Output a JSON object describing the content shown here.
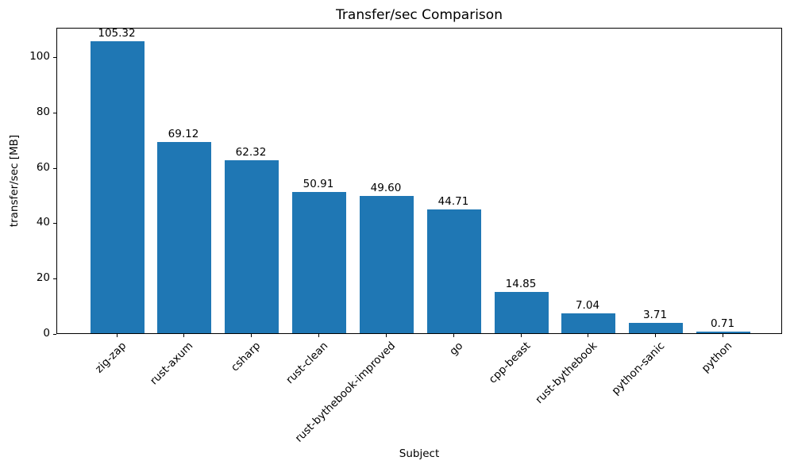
{
  "chart_data": {
    "type": "bar",
    "title": "Transfer/sec Comparison",
    "xlabel": "Subject",
    "ylabel": "transfer/sec [MB]",
    "categories": [
      "zig-zap",
      "rust-axum",
      "csharp",
      "rust-clean",
      "rust-bythebook-improved",
      "go",
      "cpp-beast",
      "rust-bythebook",
      "python-sanic",
      "python"
    ],
    "values": [
      105.32,
      69.12,
      62.32,
      50.91,
      49.6,
      44.71,
      14.85,
      7.04,
      3.71,
      0.71
    ],
    "value_labels": [
      "105.32",
      "69.12",
      "62.32",
      "50.91",
      "49.60",
      "44.71",
      "14.85",
      "7.04",
      "3.71",
      "0.71"
    ],
    "yticks": [
      0,
      20,
      40,
      60,
      80,
      100
    ],
    "ylim": [
      0,
      110.6
    ],
    "bar_color": "#1f77b4",
    "grid": false,
    "legend": "none",
    "background": "#ffffff",
    "text_color": "#000000"
  }
}
